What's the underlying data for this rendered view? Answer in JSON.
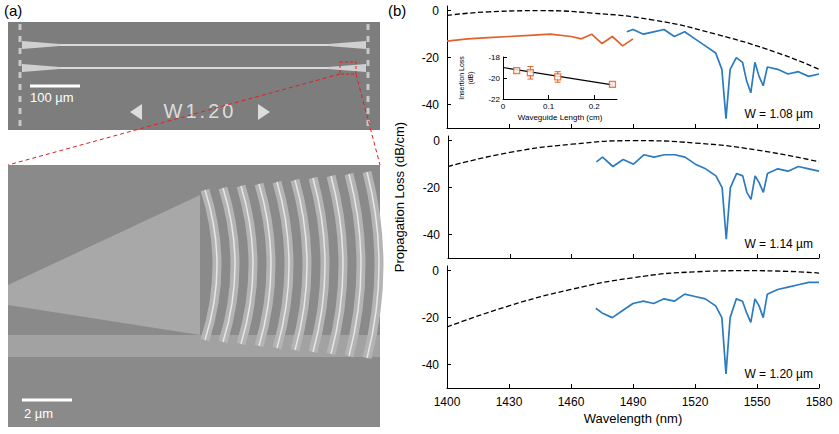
{
  "panel_labels": [
    "(a)",
    "(b)"
  ],
  "panel_a": {
    "type": "image",
    "top_image": {
      "scale_bar": "100 µm",
      "marking": "W1.20"
    },
    "bottom_image": {
      "scale_bar": "2 µm"
    }
  },
  "shared_axes": {
    "xlabel": "Wavelength (nm)",
    "ylabel": "Propagation Loss (dB/cm)"
  },
  "chart_data": [
    {
      "type": "line",
      "annotation": "W = 1.08 µm",
      "xlim": [
        1400,
        1580
      ],
      "xticks": [
        1400,
        1430,
        1460,
        1490,
        1520,
        1550,
        1580
      ],
      "ylim": [
        -50,
        2
      ],
      "yticks": [
        0,
        -20,
        -40
      ],
      "tick_labels": "y",
      "grid": false,
      "series": [
        {
          "color": "#e0622a",
          "line_style": "solid",
          "x": [
            1400,
            1410,
            1420,
            1430,
            1440,
            1450,
            1460,
            1465,
            1470,
            1475,
            1480,
            1485,
            1490
          ],
          "values": [
            -13,
            -12,
            -11.5,
            -11,
            -10.5,
            -10,
            -11,
            -12,
            -10,
            -14,
            -11,
            -15,
            -12
          ]
        },
        {
          "color": "#2a7bc0",
          "line_style": "solid",
          "x": [
            1487,
            1490,
            1495,
            1500,
            1505,
            1510,
            1515,
            1520,
            1525,
            1530,
            1533,
            1535,
            1537,
            1540,
            1543,
            1545,
            1547,
            1549,
            1551,
            1553,
            1555,
            1560,
            1565,
            1570,
            1575,
            1580
          ],
          "values": [
            -9,
            -8,
            -10,
            -9,
            -8,
            -11,
            -9,
            -12,
            -15,
            -18,
            -25,
            -46,
            -25,
            -20,
            -22,
            -30,
            -35,
            -22,
            -28,
            -32,
            -24,
            -25,
            -27,
            -26,
            -28,
            -27
          ]
        },
        {
          "color": "#000000",
          "line_style": "dashed",
          "x": [
            1400,
            1420,
            1445,
            1470,
            1500,
            1530,
            1560,
            1580
          ],
          "values": [
            -2,
            -0.5,
            0,
            -1,
            -4,
            -10,
            -18,
            -25
          ]
        }
      ]
    },
    {
      "type": "line",
      "annotation": "W = 1.14 µm",
      "xlim": [
        1400,
        1580
      ],
      "xticks": [
        1400,
        1430,
        1460,
        1490,
        1520,
        1550,
        1580
      ],
      "ylim": [
        -50,
        2
      ],
      "yticks": [
        0,
        -20,
        -40
      ],
      "tick_labels": "y",
      "grid": false,
      "series": [
        {
          "color": "#2a7bc0",
          "line_style": "solid",
          "x": [
            1472,
            1475,
            1480,
            1485,
            1490,
            1495,
            1500,
            1505,
            1510,
            1515,
            1520,
            1525,
            1530,
            1533,
            1535,
            1537,
            1540,
            1543,
            1545,
            1547,
            1549,
            1551,
            1553,
            1555,
            1560,
            1565,
            1570,
            1575,
            1580
          ],
          "values": [
            -9,
            -7,
            -11,
            -8,
            -10,
            -6,
            -7,
            -6,
            -6,
            -7,
            -10,
            -12,
            -15,
            -20,
            -42,
            -20,
            -14,
            -15,
            -22,
            -25,
            -15,
            -18,
            -22,
            -14,
            -12,
            -13,
            -11,
            -12,
            -13
          ]
        },
        {
          "color": "#000000",
          "line_style": "dashed",
          "x": [
            1400,
            1430,
            1460,
            1490,
            1520,
            1550,
            1580
          ],
          "values": [
            -11,
            -5,
            -1.5,
            0,
            -1,
            -4,
            -9
          ]
        }
      ]
    },
    {
      "type": "line",
      "annotation": "W = 1.20 µm",
      "xlim": [
        1400,
        1580
      ],
      "xticks": [
        1400,
        1430,
        1460,
        1490,
        1520,
        1550,
        1580
      ],
      "ylim": [
        -50,
        2
      ],
      "yticks": [
        0,
        -20,
        -40
      ],
      "grid": false,
      "series": [
        {
          "color": "#2a7bc0",
          "line_style": "solid",
          "x": [
            1472,
            1475,
            1480,
            1485,
            1490,
            1495,
            1500,
            1505,
            1510,
            1515,
            1520,
            1525,
            1530,
            1533,
            1535,
            1537,
            1540,
            1543,
            1545,
            1547,
            1549,
            1551,
            1553,
            1555,
            1560,
            1565,
            1570,
            1575,
            1580
          ],
          "values": [
            -16,
            -18,
            -20,
            -17,
            -14,
            -13,
            -14,
            -12,
            -13,
            -10,
            -11,
            -12,
            -15,
            -20,
            -44,
            -20,
            -12,
            -13,
            -18,
            -22,
            -12,
            -15,
            -20,
            -10,
            -8,
            -7,
            -6,
            -5,
            -5
          ]
        },
        {
          "color": "#000000",
          "line_style": "dashed",
          "x": [
            1400,
            1430,
            1460,
            1490,
            1520,
            1545,
            1565,
            1580
          ],
          "values": [
            -24,
            -15,
            -8,
            -3,
            -0.5,
            0,
            -0.3,
            -1
          ]
        }
      ]
    },
    {
      "type": "scatter",
      "xlabel": "Waveguide Length (cm)",
      "ylabel": "Insertion Loss (dB)",
      "xlim": [
        0,
        0.25
      ],
      "xticks": [
        0,
        0.1,
        0.2
      ],
      "ylim": [
        -22,
        -18
      ],
      "yticks": [
        -18,
        -20,
        -22
      ],
      "grid": false,
      "series": [
        {
          "type": "scatter",
          "marker": "square",
          "color": "#e0622a",
          "x": [
            0.03,
            0.06,
            0.12,
            0.24
          ],
          "values": [
            -19.3,
            -19.5,
            -19.9,
            -20.6
          ],
          "errors": [
            0.2,
            0.6,
            0.5,
            0.2
          ]
        },
        {
          "type": "line",
          "color": "#000000",
          "line_style": "solid",
          "x": [
            0,
            0.24
          ],
          "values": [
            -19.0,
            -20.65
          ]
        }
      ]
    }
  ]
}
